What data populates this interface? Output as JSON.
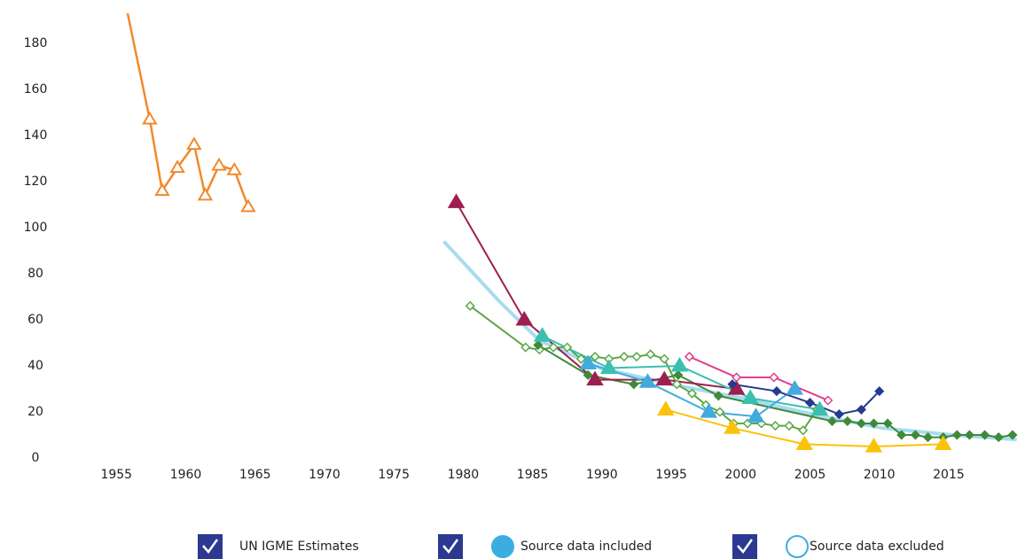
{
  "chart_data": {
    "type": "line",
    "xlim": [
      1953,
      2020.5
    ],
    "ylim": [
      0,
      193
    ],
    "xticks": [
      1955,
      1960,
      1965,
      1970,
      1975,
      1980,
      1985,
      1990,
      1995,
      2000,
      2005,
      2010,
      2015
    ],
    "yticks": [
      0,
      20,
      40,
      60,
      80,
      100,
      120,
      140,
      160,
      180
    ],
    "grid": false,
    "legend": {
      "position": "bottom",
      "items": [
        {
          "label": "UN IGME Estimates",
          "symbol": "none",
          "color": "#2b3990"
        },
        {
          "label": "Source data included",
          "symbol": "filled-circle",
          "color": "#3aaee0"
        },
        {
          "label": "Source data excluded",
          "symbol": "open-circle",
          "color": "#3aaee0"
        }
      ]
    },
    "series": [
      {
        "color": "#f08a2c",
        "marker": "triangle",
        "filled": false,
        "width": 2.5,
        "x": [
          1955.6,
          1957.4,
          1958.3,
          1959.4,
          1960.6,
          1961.4,
          1962.4,
          1963.5,
          1964.5
        ],
        "values": [
          199,
          147,
          116,
          126,
          136,
          114,
          127,
          125,
          109
        ]
      },
      {
        "color": "#a8dcf0",
        "marker": "none",
        "filled": false,
        "width": 4,
        "x": [
          1978.6,
          1982.6,
          1985.5,
          1989.9,
          1995,
          2000.1,
          2005.2,
          2010.2,
          2015.3,
          2019.9
        ],
        "values": [
          94,
          68,
          51,
          39,
          32,
          26,
          19,
          13,
          10,
          8
        ]
      },
      {
        "color": "#5aa845",
        "marker": "diamond",
        "filled": false,
        "width": 2,
        "x": [
          1980.5,
          1984.5,
          1985.5,
          1986.5,
          1987.5,
          1988.5,
          1989.5,
          1990.5,
          1991.6,
          1992.5,
          1993.5,
          1994.5,
          1995.4,
          1996.5,
          1997.5,
          1998.5,
          1999.5,
          2000.5,
          2001.5,
          2002.5,
          2003.5,
          2004.5,
          2005.5
        ],
        "values": [
          66,
          48,
          47,
          48,
          48,
          43,
          44,
          43,
          44,
          44,
          45,
          43,
          32,
          28,
          23,
          20,
          15,
          15,
          15,
          14,
          14,
          12,
          21
        ]
      },
      {
        "color": "#3f8a3a",
        "marker": "diamond",
        "filled": true,
        "width": 2,
        "x": [
          1985.4,
          1989,
          1992.3,
          1995.5,
          1998.4,
          2006.6,
          2007.7,
          2008.7,
          2009.6,
          2010.6,
          2011.6,
          2012.6,
          2013.5,
          2014.6,
          2015.6,
          2016.5,
          2017.6,
          2018.6,
          2019.6
        ],
        "values": [
          49,
          36,
          32,
          36,
          27,
          16,
          16,
          15,
          15,
          15,
          10,
          10,
          9,
          9,
          10,
          10,
          10,
          9,
          10
        ]
      },
      {
        "color": "#9e1f4f",
        "marker": "triangle",
        "filled": true,
        "width": 2,
        "x": [
          1979.5,
          1984.4,
          1989.5,
          1994.5,
          1999.7
        ],
        "values": [
          111,
          60,
          34,
          34,
          30
        ]
      },
      {
        "color": "#3cbfb0",
        "marker": "triangle",
        "filled": true,
        "width": 2,
        "x": [
          1985.7,
          1990.5,
          1995.6,
          2000.7,
          2005.7
        ],
        "values": [
          53,
          39,
          40,
          26,
          21
        ]
      },
      {
        "color": "#41aadf",
        "marker": "triangle",
        "filled": true,
        "width": 2,
        "x": [
          1989,
          1993.3,
          1997.7,
          2001.1,
          2003.9
        ],
        "values": [
          41,
          33,
          20,
          18,
          30
        ]
      },
      {
        "color": "#fbc20a",
        "marker": "triangle",
        "filled": true,
        "width": 2,
        "x": [
          1994.6,
          1999.4,
          2004.6,
          2009.6,
          2014.6
        ],
        "values": [
          21,
          13,
          6,
          5,
          6
        ]
      },
      {
        "color": "#e0418a",
        "marker": "diamond",
        "filled": false,
        "width": 2,
        "x": [
          1996.3,
          1999.7,
          2002.4,
          2006.3
        ],
        "values": [
          44,
          35,
          35,
          25
        ]
      },
      {
        "color": "#263a8f",
        "marker": "diamond",
        "filled": true,
        "width": 2,
        "x": [
          1999.4,
          2002.6,
          2005,
          2007.1,
          2008.7,
          2010
        ],
        "values": [
          32,
          29,
          24,
          19,
          21,
          29
        ]
      }
    ]
  }
}
